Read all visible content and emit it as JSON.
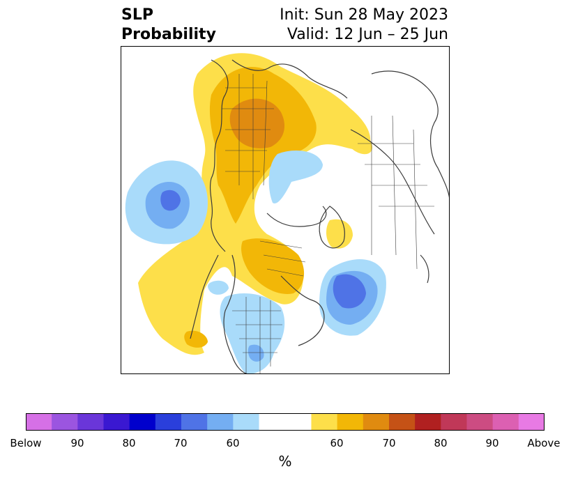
{
  "header": {
    "title_line1": "SLP",
    "title_line2": "Probability",
    "init_text": "Init: Sun 28 May 2023",
    "valid_text": "Valid: 12 Jun – 25 Jun"
  },
  "colorbar": {
    "colors": [
      "#d670e6",
      "#9b55e0",
      "#6a36d9",
      "#3a18d1",
      "#0000cc",
      "#2a3fdb",
      "#4f73e6",
      "#74aef2",
      "#a9dbfa",
      "#ffffff",
      "#fddf4a",
      "#f2b707",
      "#e08b10",
      "#c55216",
      "#b02020",
      "#c03858",
      "#cc4c82",
      "#dc60b2",
      "#e87ae4"
    ],
    "tick_labels": [
      "Below",
      "90",
      "80",
      "70",
      "60",
      "60",
      "70",
      "80",
      "90",
      "Above"
    ],
    "unit": "%"
  },
  "legend_colors": {
    "below_light": "#a9dbfa",
    "below_mid": "#74aef2",
    "below_dark": "#4f73e6",
    "above_light": "#fddf4a",
    "above_mid": "#f2b707",
    "above_dark": "#e08b10"
  }
}
